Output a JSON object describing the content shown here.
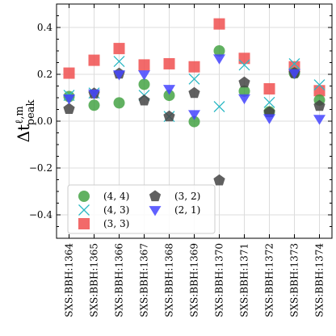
{
  "chart_data": {
    "type": "scatter",
    "ylabel_main": "Δt",
    "ylabel_sub": "peak",
    "ylabel_sup": "ℓ,m",
    "categories": [
      "SXS:BBH:1364",
      "SXS:BBH:1365",
      "SXS:BBH:1366",
      "SXS:BBH:1367",
      "SXS:BBH:1368",
      "SXS:BBH:1369",
      "SXS:BBH:1370",
      "SXS:BBH:1371",
      "SXS:BBH:1372",
      "SXS:BBH:1373",
      "SXS:BBH:1374"
    ],
    "ylim": [
      -0.5,
      0.5
    ],
    "yticks": [
      -0.4,
      -0.2,
      0.0,
      0.2,
      0.4
    ],
    "ytick_labels": [
      "−0.4",
      "−0.2",
      "0.0",
      "0.2",
      "0.4"
    ],
    "grid": true,
    "legend_position": "lower-left",
    "series": [
      {
        "name": "(4, 4)",
        "marker": "circle",
        "color": "#3a9e3a",
        "values": [
          0.105,
          0.068,
          0.078,
          0.157,
          0.11,
          -0.002,
          0.3,
          0.128,
          0.04,
          0.205,
          0.09
        ]
      },
      {
        "name": "(4, 3)",
        "marker": "x",
        "color": "#2bb8c4",
        "values": [
          0.11,
          0.12,
          0.255,
          0.11,
          0.02,
          0.18,
          0.062,
          0.24,
          0.08,
          0.245,
          0.155
        ]
      },
      {
        "name": "(3, 3)",
        "marker": "square",
        "color": "#f05050",
        "values": [
          0.205,
          0.26,
          0.31,
          0.24,
          0.245,
          0.232,
          0.415,
          0.268,
          0.138,
          0.232,
          0.13
        ]
      },
      {
        "name": "(3, 2)",
        "marker": "pentagon",
        "color": "#444444",
        "values": [
          0.052,
          0.118,
          0.203,
          0.088,
          0.02,
          0.12,
          -0.253,
          0.165,
          0.038,
          0.205,
          0.065
        ]
      },
      {
        "name": "(2, 1)",
        "marker": "triangle-down",
        "color": "#4444ff",
        "values": [
          0.097,
          0.118,
          0.2,
          0.2,
          0.138,
          0.03,
          0.268,
          0.098,
          0.013,
          0.205,
          0.01
        ]
      }
    ]
  }
}
